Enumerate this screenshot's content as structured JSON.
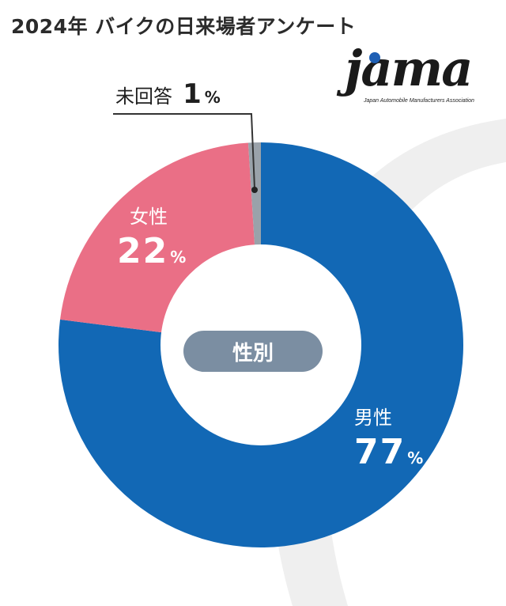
{
  "title": "2024年 バイクの日来場者アンケート",
  "logo": {
    "word": "jama",
    "subtitle": "Japan Automobile Manufacturers Association",
    "dot_color": "#1e5fb4"
  },
  "chart_data": {
    "type": "pie",
    "donut": true,
    "center_label": "性別",
    "slices": [
      {
        "label": "男性",
        "value": 77,
        "unit": "%",
        "color": "#1268b5"
      },
      {
        "label": "女性",
        "value": 22,
        "unit": "%",
        "color": "#ea6f86"
      },
      {
        "label": "未回答",
        "value": 1,
        "unit": "%",
        "color": "#9aa2aa"
      }
    ]
  }
}
